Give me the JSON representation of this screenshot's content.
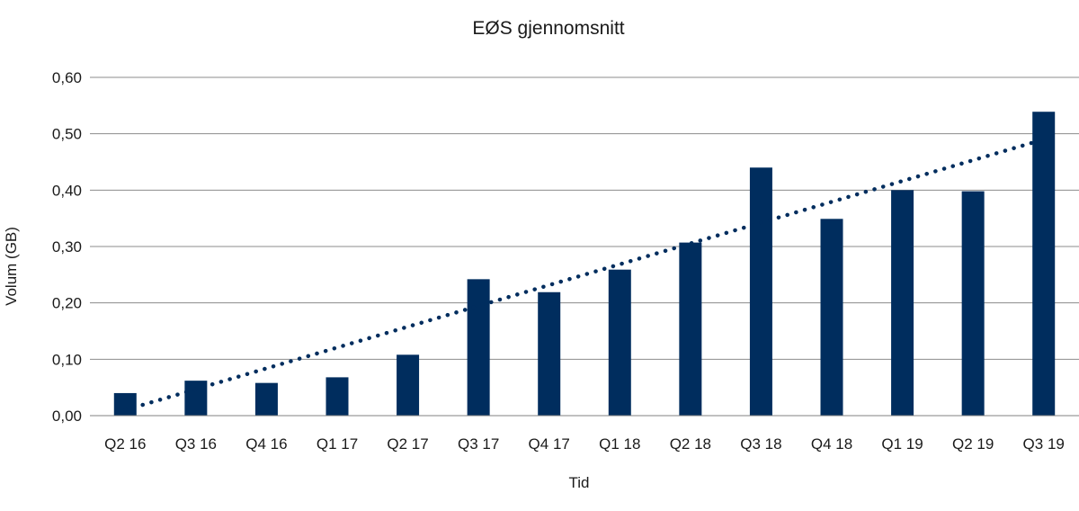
{
  "chart_data": {
    "type": "bar",
    "title": "EØS gjennomsnitt",
    "xlabel": "Tid",
    "ylabel": "Volum (GB)",
    "categories": [
      "Q2 16",
      "Q3 16",
      "Q4 16",
      "Q1 17",
      "Q2 17",
      "Q3 17",
      "Q4 17",
      "Q1 18",
      "Q2 18",
      "Q3 18",
      "Q4 18",
      "Q1 19",
      "Q2 19",
      "Q3 19"
    ],
    "series": [
      {
        "values": [
          0.04,
          0.062,
          0.058,
          0.068,
          0.108,
          0.242,
          0.219,
          0.259,
          0.307,
          0.44,
          0.349,
          0.4,
          0.398,
          0.539
        ],
        "color": "#002d5e"
      }
    ],
    "trendline": {
      "type": "linear",
      "style": "dotted",
      "color": "#002d5e",
      "start": 0.01,
      "end": 0.49
    },
    "yticks": [
      "0,00",
      "0,10",
      "0,20",
      "0,30",
      "0,40",
      "0,50",
      "0,60"
    ],
    "ylim": [
      0,
      0.6
    ],
    "grid": true,
    "legend": "none"
  }
}
